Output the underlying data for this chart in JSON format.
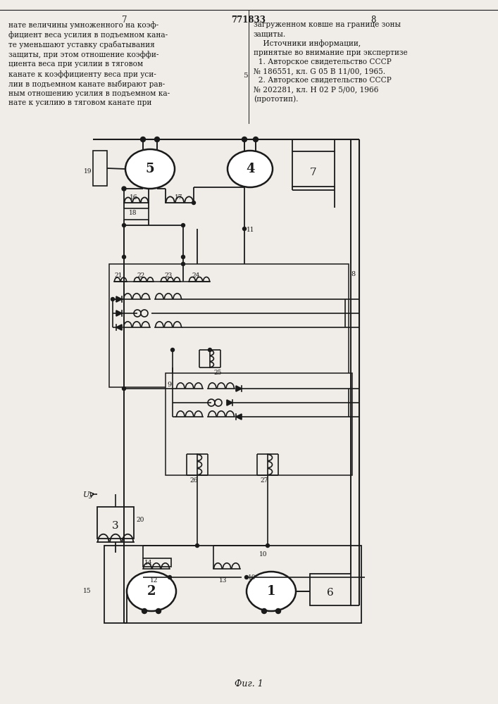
{
  "page_num_left": "7",
  "title_center": "771833",
  "page_num_right": "8",
  "text_left": "нате величины умноженного на коэф-\nфициент веса усилия в подъемном кана-\nте уменьшают уставку срабатывания\nзащиты, при этом отношение коэффи-\nциента веса при усилии в тяговом\nканате к коэффициенту веса при уси-\nлии в подъемном канате выбирают рав-\nным отношению усилия в подъемном ка-\nнате к усилию в тяговом канате при",
  "text_right": "загруженном ковше на границе зоны\nзащиты.\n    Источники информации,\nпринятые во внимание при экспертизе\n  1. Авторское свидетельство СССР\n№ 186551, кл. G 05 В 11/00, 1965.\n  2. Авторское свидетельство СССР\n№ 202281, кл. Н 02 Р 5/00, 1966\n(прототип).",
  "num5": "5",
  "fig_label": "Фиг. 1",
  "bg_color": "#f0ede8",
  "line_color": "#1a1a1a",
  "text_color": "#1a1a1a"
}
